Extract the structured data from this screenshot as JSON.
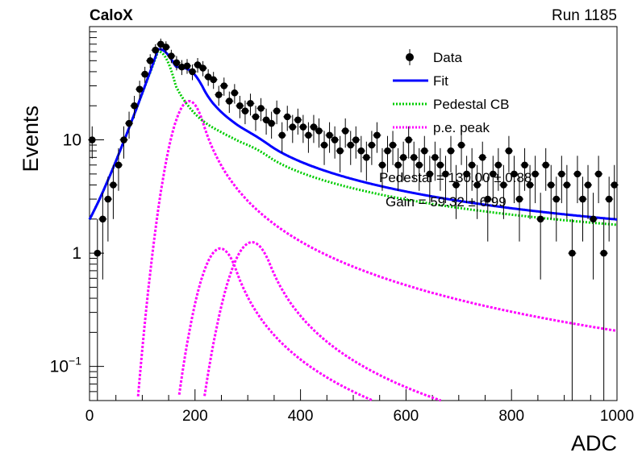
{
  "header": {
    "left": "CaloX",
    "right": "Run 1185"
  },
  "chart_data": {
    "type": "scatter",
    "xlabel": "ADC",
    "ylabel": "Events",
    "xlim": [
      0,
      1000
    ],
    "ylim": [
      0.05,
      100
    ],
    "yscale": "log",
    "grid": false,
    "legend_position": "top-right",
    "x_ticks": [
      "0",
      "200",
      "400",
      "600",
      "800",
      "1000"
    ],
    "y_ticks": [
      {
        "value": 0.1,
        "base": "10",
        "exp": "−1"
      },
      {
        "value": 1,
        "base": "1",
        "exp": ""
      },
      {
        "value": 10,
        "base": "10",
        "exp": ""
      }
    ],
    "legend": [
      {
        "label": "Data",
        "style": "marker",
        "color": "#000000"
      },
      {
        "label": "Fit",
        "style": "solid",
        "color": "#0000ff"
      },
      {
        "label": "Pedestal CB",
        "style": "dotted",
        "color": "#00cc00"
      },
      {
        "label": "p.e. peak",
        "style": "dotted",
        "color": "#ff00ff"
      }
    ],
    "annotations": {
      "pedestal_text": "Pedestal = 130.00 ± 0.88",
      "gain_text": "Gain = 59.32 ± 6.99"
    },
    "series": [
      {
        "name": "Data",
        "x": [
          5,
          15,
          25,
          35,
          45,
          55,
          65,
          75,
          85,
          95,
          105,
          115,
          125,
          135,
          145,
          155,
          165,
          175,
          185,
          195,
          205,
          215,
          225,
          235,
          245,
          255,
          265,
          275,
          285,
          295,
          305,
          315,
          325,
          335,
          345,
          355,
          365,
          375,
          385,
          395,
          405,
          415,
          425,
          435,
          445,
          455,
          465,
          475,
          485,
          495,
          505,
          515,
          525,
          535,
          545,
          555,
          565,
          575,
          585,
          595,
          605,
          615,
          625,
          635,
          645,
          655,
          665,
          675,
          685,
          695,
          705,
          715,
          725,
          735,
          745,
          755,
          765,
          775,
          785,
          795,
          805,
          815,
          825,
          835,
          845,
          855,
          865,
          875,
          885,
          895,
          905,
          915,
          925,
          935,
          945,
          955,
          965,
          975,
          985,
          995
        ],
        "y": [
          10,
          1,
          2,
          3,
          4,
          6,
          10,
          14,
          20,
          28,
          38,
          50,
          62,
          70,
          66,
          55,
          48,
          44,
          45,
          40,
          46,
          43,
          36,
          34,
          25,
          30,
          22,
          26,
          20,
          18,
          21,
          16,
          19,
          15,
          14,
          18,
          11,
          16,
          13,
          15,
          13,
          11,
          13,
          12,
          9,
          11,
          10,
          8,
          12,
          9,
          10,
          8,
          7,
          9,
          11,
          6,
          8,
          9,
          6,
          7,
          10,
          7,
          6,
          8,
          5,
          7,
          6,
          5,
          8,
          4,
          9,
          5,
          6,
          4,
          7,
          3,
          5,
          6,
          4,
          8,
          5,
          3,
          6,
          4,
          5,
          2,
          6,
          4,
          3,
          5,
          4,
          1,
          5,
          3,
          4,
          2,
          5,
          1,
          3,
          4
        ]
      }
    ]
  }
}
